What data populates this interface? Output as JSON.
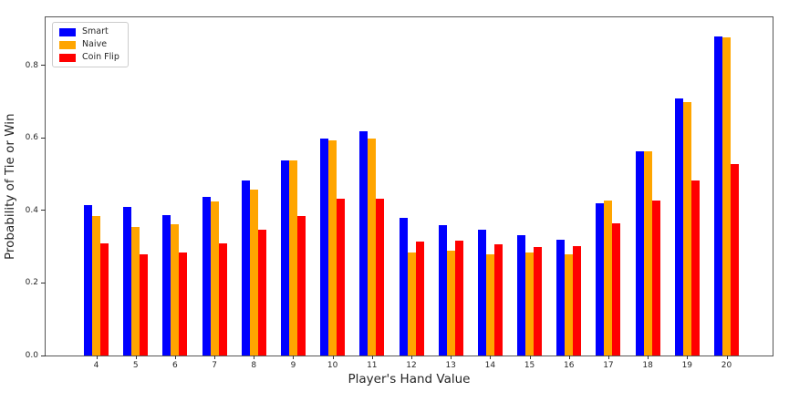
{
  "chart_data": {
    "type": "bar",
    "title": "",
    "xlabel": "Player's Hand Value",
    "ylabel": "Probability of Tie or Win",
    "categories": [
      "4",
      "5",
      "6",
      "7",
      "8",
      "9",
      "10",
      "11",
      "12",
      "13",
      "14",
      "15",
      "16",
      "17",
      "18",
      "19",
      "20"
    ],
    "series": [
      {
        "name": "Smart",
        "color": "#0000ff",
        "values": [
          0.415,
          0.41,
          0.388,
          0.438,
          0.483,
          0.538,
          0.598,
          0.618,
          0.379,
          0.36,
          0.348,
          0.333,
          0.32,
          0.42,
          0.563,
          0.708,
          0.88
        ]
      },
      {
        "name": "Naive",
        "color": "#ffa500",
        "values": [
          0.385,
          0.355,
          0.363,
          0.425,
          0.458,
          0.538,
          0.593,
          0.598,
          0.283,
          0.29,
          0.28,
          0.285,
          0.28,
          0.428,
          0.563,
          0.7,
          0.878
        ]
      },
      {
        "name": "Coin Flip",
        "color": "#ff0000",
        "values": [
          0.31,
          0.28,
          0.283,
          0.31,
          0.348,
          0.385,
          0.433,
          0.433,
          0.315,
          0.318,
          0.308,
          0.3,
          0.303,
          0.365,
          0.428,
          0.483,
          0.528
        ]
      }
    ],
    "yticks": [
      "0.0",
      "0.2",
      "0.4",
      "0.6",
      "0.8"
    ],
    "ylim": [
      0,
      0.933
    ],
    "grid": false,
    "legend_position": "upper left"
  }
}
